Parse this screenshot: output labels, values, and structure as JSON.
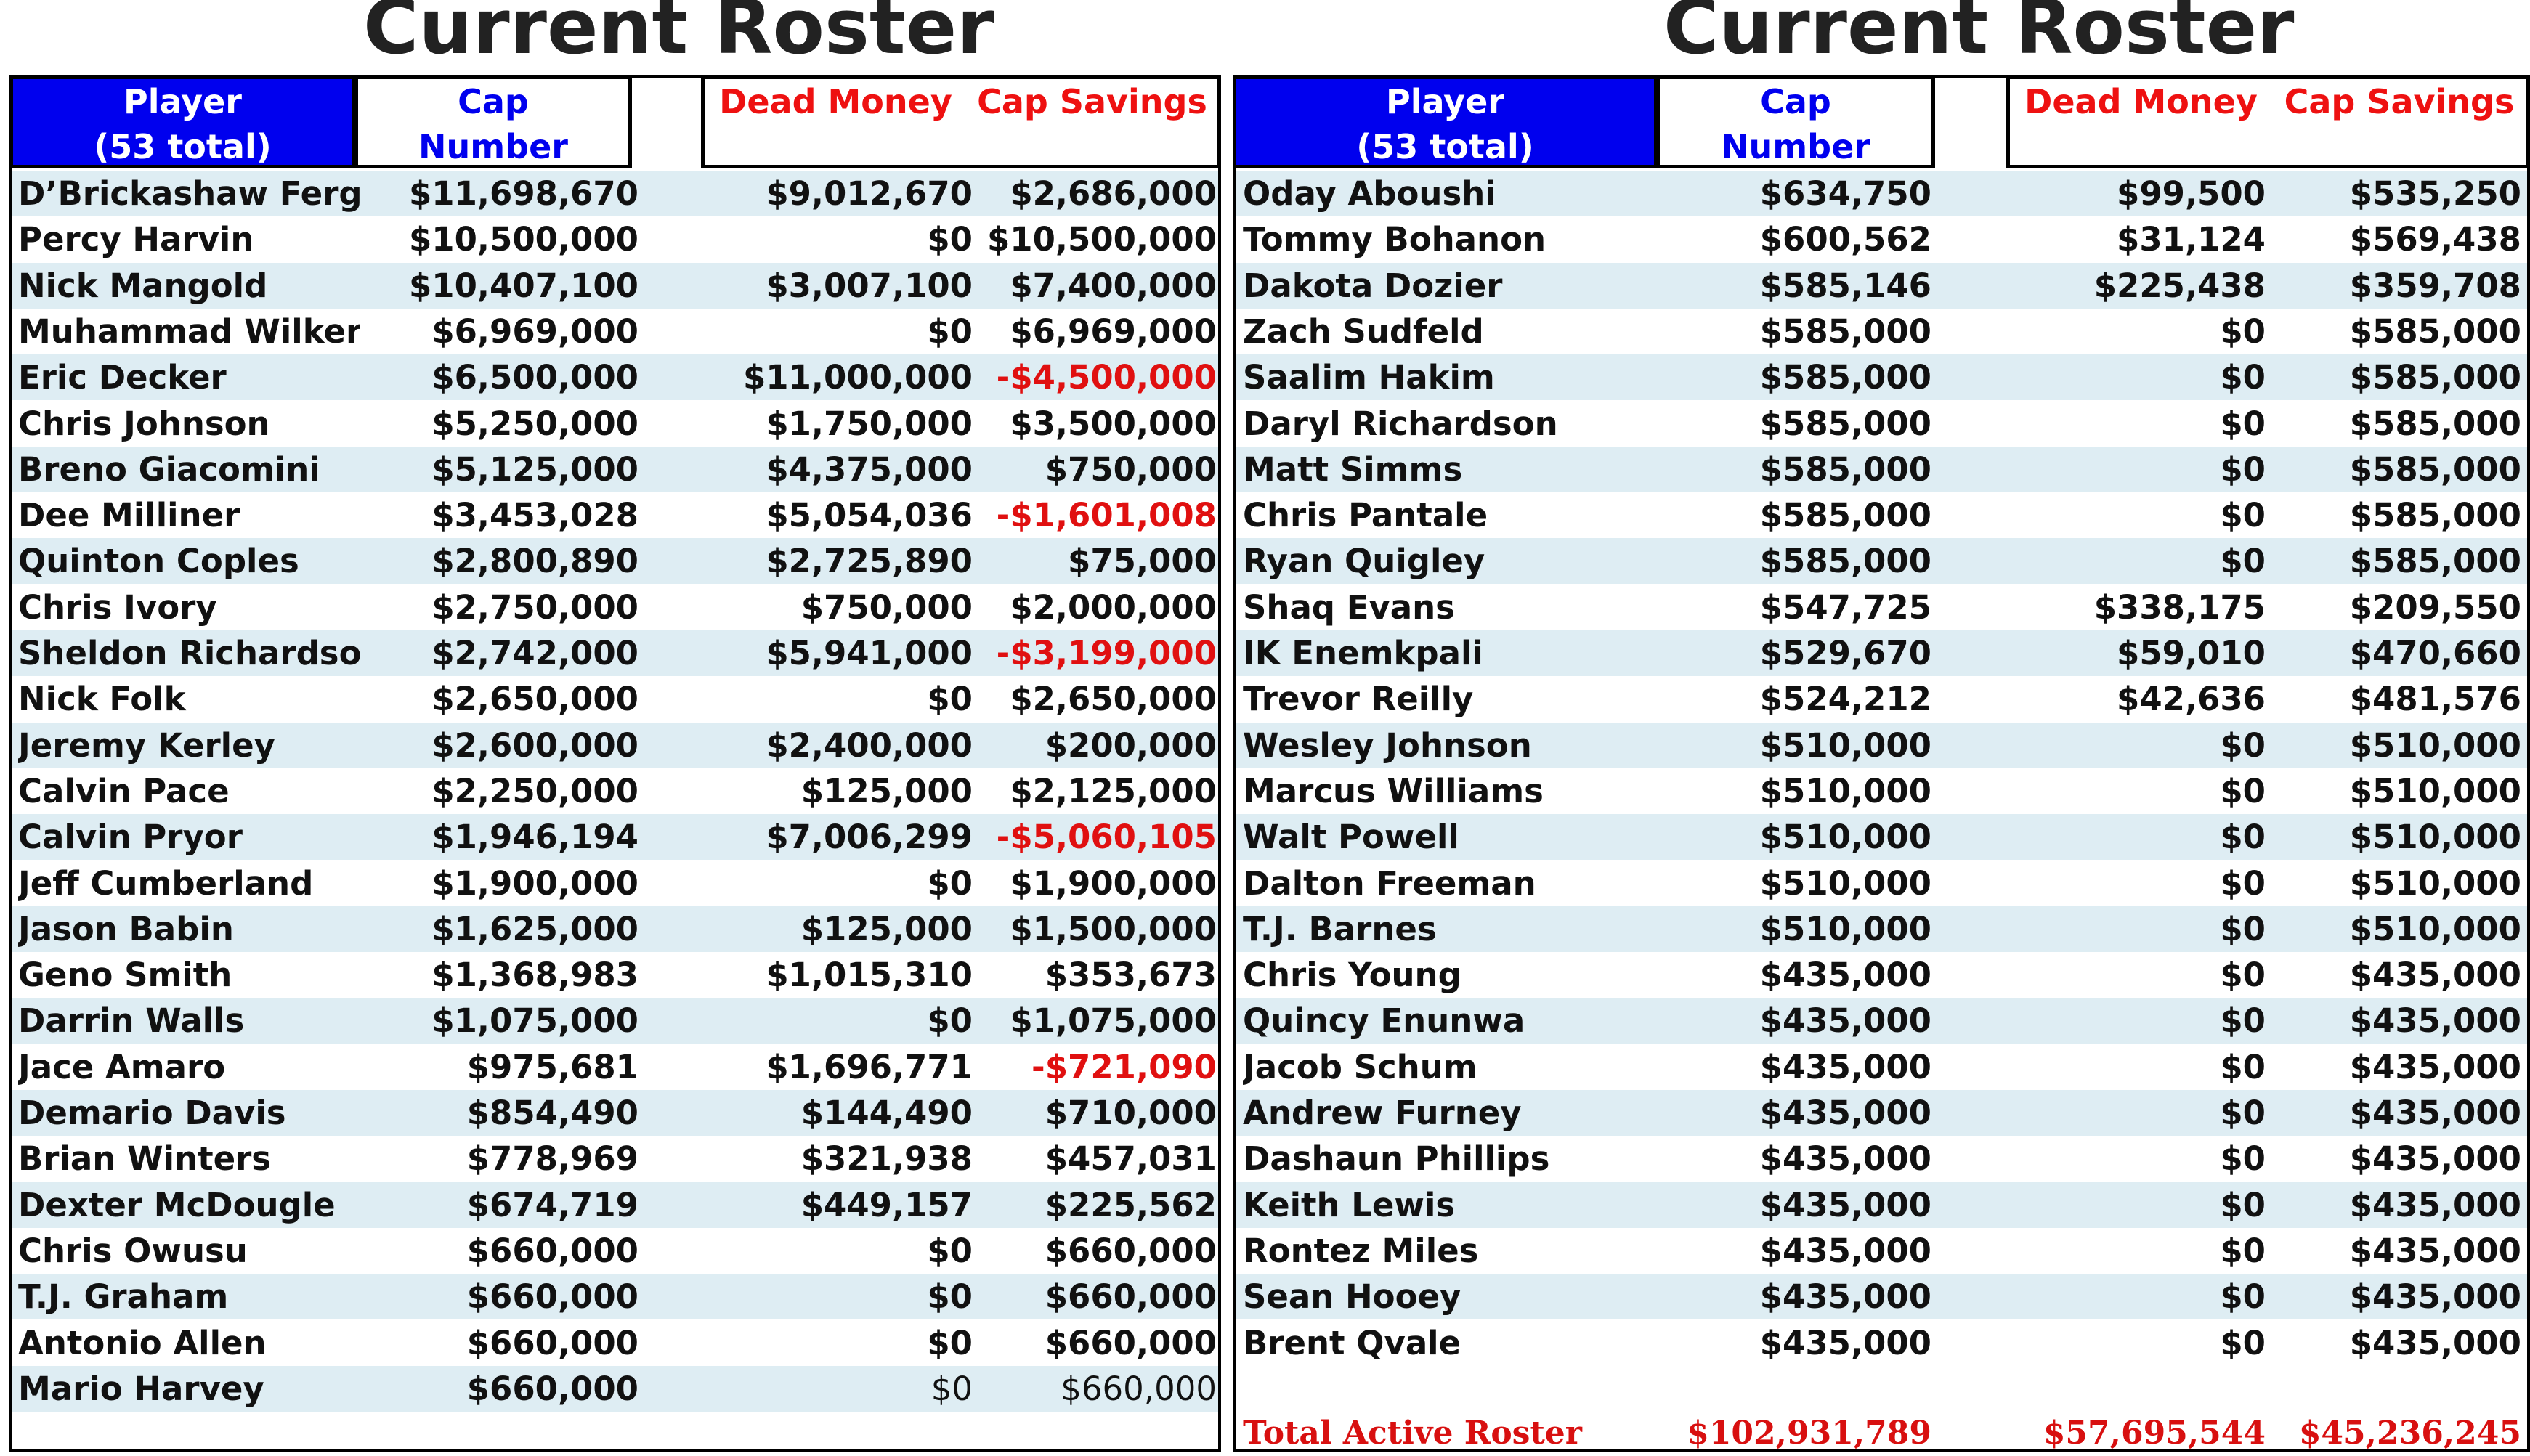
{
  "left": {
    "title": "Current Roster",
    "headers": {
      "player_line1": "Player",
      "player_line2": "(53 total)",
      "cap_line1": "Cap",
      "cap_line2": "Number",
      "dead": "Dead Money",
      "savings": "Cap Savings"
    },
    "rows": [
      {
        "player": "D’Brickashaw Ferguson",
        "cap": "$11,698,670",
        "dead": "$9,012,670",
        "savings": "$2,686,000"
      },
      {
        "player": "Percy Harvin",
        "cap": "$10,500,000",
        "dead": "$0",
        "savings": "$10,500,000"
      },
      {
        "player": "Nick Mangold",
        "cap": "$10,407,100",
        "dead": "$3,007,100",
        "savings": "$7,400,000"
      },
      {
        "player": "Muhammad Wilkerson",
        "cap": "$6,969,000",
        "dead": "$0",
        "savings": "$6,969,000"
      },
      {
        "player": "Eric Decker",
        "cap": "$6,500,000",
        "dead": "$11,000,000",
        "savings": "-$4,500,000",
        "negative": true
      },
      {
        "player": "Chris Johnson",
        "cap": "$5,250,000",
        "dead": "$1,750,000",
        "savings": "$3,500,000"
      },
      {
        "player": "Breno Giacomini",
        "cap": "$5,125,000",
        "dead": "$4,375,000",
        "savings": "$750,000"
      },
      {
        "player": "Dee Milliner",
        "cap": "$3,453,028",
        "dead": "$5,054,036",
        "savings": "-$1,601,008",
        "negative": true
      },
      {
        "player": "Quinton Coples",
        "cap": "$2,800,890",
        "dead": "$2,725,890",
        "savings": "$75,000"
      },
      {
        "player": "Chris Ivory",
        "cap": "$2,750,000",
        "dead": "$750,000",
        "savings": "$2,000,000"
      },
      {
        "player": "Sheldon Richardson",
        "cap": "$2,742,000",
        "dead": "$5,941,000",
        "savings": "-$3,199,000",
        "negative": true
      },
      {
        "player": "Nick Folk",
        "cap": "$2,650,000",
        "dead": "$0",
        "savings": "$2,650,000"
      },
      {
        "player": "Jeremy Kerley",
        "cap": "$2,600,000",
        "dead": "$2,400,000",
        "savings": "$200,000"
      },
      {
        "player": "Calvin Pace",
        "cap": "$2,250,000",
        "dead": "$125,000",
        "savings": "$2,125,000"
      },
      {
        "player": "Calvin Pryor",
        "cap": "$1,946,194",
        "dead": "$7,006,299",
        "savings": "-$5,060,105",
        "negative": true
      },
      {
        "player": "Jeff Cumberland",
        "cap": "$1,900,000",
        "dead": "$0",
        "savings": "$1,900,000"
      },
      {
        "player": "Jason Babin",
        "cap": "$1,625,000",
        "dead": "$125,000",
        "savings": "$1,500,000"
      },
      {
        "player": "Geno Smith",
        "cap": "$1,368,983",
        "dead": "$1,015,310",
        "savings": "$353,673"
      },
      {
        "player": "Darrin Walls",
        "cap": "$1,075,000",
        "dead": "$0",
        "savings": "$1,075,000"
      },
      {
        "player": "Jace Amaro",
        "cap": "$975,681",
        "dead": "$1,696,771",
        "savings": "-$721,090",
        "negative": true
      },
      {
        "player": "Demario Davis",
        "cap": "$854,490",
        "dead": "$144,490",
        "savings": "$710,000"
      },
      {
        "player": "Brian Winters",
        "cap": "$778,969",
        "dead": "$321,938",
        "savings": "$457,031"
      },
      {
        "player": "Dexter McDougle",
        "cap": "$674,719",
        "dead": "$449,157",
        "savings": "$225,562"
      },
      {
        "player": "Chris Owusu",
        "cap": "$660,000",
        "dead": "$0",
        "savings": "$660,000"
      },
      {
        "player": "T.J. Graham",
        "cap": "$660,000",
        "dead": "$0",
        "savings": "$660,000"
      },
      {
        "player": "Antonio Allen",
        "cap": "$660,000",
        "dead": "$0",
        "savings": "$660,000"
      },
      {
        "player": "Mario Harvey",
        "cap": "$660,000",
        "dead": "$0",
        "savings": "$660,000",
        "light_tail": true
      }
    ]
  },
  "right": {
    "title": "Current Roster",
    "headers": {
      "player_line1": "Player",
      "player_line2": "(53 total)",
      "cap_line1": "Cap",
      "cap_line2": "Number",
      "dead": "Dead Money",
      "savings": "Cap Savings"
    },
    "rows": [
      {
        "player": "Oday Aboushi",
        "cap": "$634,750",
        "dead": "$99,500",
        "savings": "$535,250"
      },
      {
        "player": "Tommy Bohanon",
        "cap": "$600,562",
        "dead": "$31,124",
        "savings": "$569,438"
      },
      {
        "player": "Dakota Dozier",
        "cap": "$585,146",
        "dead": "$225,438",
        "savings": "$359,708"
      },
      {
        "player": "Zach Sudfeld",
        "cap": "$585,000",
        "dead": "$0",
        "savings": "$585,000"
      },
      {
        "player": "Saalim Hakim",
        "cap": "$585,000",
        "dead": "$0",
        "savings": "$585,000"
      },
      {
        "player": "Daryl Richardson",
        "cap": "$585,000",
        "dead": "$0",
        "savings": "$585,000"
      },
      {
        "player": "Matt Simms",
        "cap": "$585,000",
        "dead": "$0",
        "savings": "$585,000"
      },
      {
        "player": "Chris Pantale",
        "cap": "$585,000",
        "dead": "$0",
        "savings": "$585,000"
      },
      {
        "player": "Ryan Quigley",
        "cap": "$585,000",
        "dead": "$0",
        "savings": "$585,000"
      },
      {
        "player": "Shaq Evans",
        "cap": "$547,725",
        "dead": "$338,175",
        "savings": "$209,550"
      },
      {
        "player": "IK Enemkpali",
        "cap": "$529,670",
        "dead": "$59,010",
        "savings": "$470,660"
      },
      {
        "player": "Trevor Reilly",
        "cap": "$524,212",
        "dead": "$42,636",
        "savings": "$481,576"
      },
      {
        "player": "Wesley Johnson",
        "cap": "$510,000",
        "dead": "$0",
        "savings": "$510,000"
      },
      {
        "player": "Marcus Williams",
        "cap": "$510,000",
        "dead": "$0",
        "savings": "$510,000"
      },
      {
        "player": "Walt Powell",
        "cap": "$510,000",
        "dead": "$0",
        "savings": "$510,000"
      },
      {
        "player": "Dalton Freeman",
        "cap": "$510,000",
        "dead": "$0",
        "savings": "$510,000"
      },
      {
        "player": "T.J. Barnes",
        "cap": "$510,000",
        "dead": "$0",
        "savings": "$510,000"
      },
      {
        "player": "Chris Young",
        "cap": "$435,000",
        "dead": "$0",
        "savings": "$435,000"
      },
      {
        "player": "Quincy Enunwa",
        "cap": "$435,000",
        "dead": "$0",
        "savings": "$435,000"
      },
      {
        "player": "Jacob Schum",
        "cap": "$435,000",
        "dead": "$0",
        "savings": "$435,000"
      },
      {
        "player": "Andrew Furney",
        "cap": "$435,000",
        "dead": "$0",
        "savings": "$435,000"
      },
      {
        "player": "Dashaun Phillips",
        "cap": "$435,000",
        "dead": "$0",
        "savings": "$435,000"
      },
      {
        "player": "Keith Lewis",
        "cap": "$435,000",
        "dead": "$0",
        "savings": "$435,000"
      },
      {
        "player": "Rontez Miles",
        "cap": "$435,000",
        "dead": "$0",
        "savings": "$435,000"
      },
      {
        "player": "Sean Hooey",
        "cap": "$435,000",
        "dead": "$0",
        "savings": "$435,000"
      },
      {
        "player": "Brent Qvale",
        "cap": "$435,000",
        "dead": "$0",
        "savings": "$435,000"
      }
    ],
    "total": {
      "label": "Total Active Roster",
      "cap": "$102,931,789",
      "dead": "$57,695,544",
      "savings": "$45,236,245"
    }
  }
}
